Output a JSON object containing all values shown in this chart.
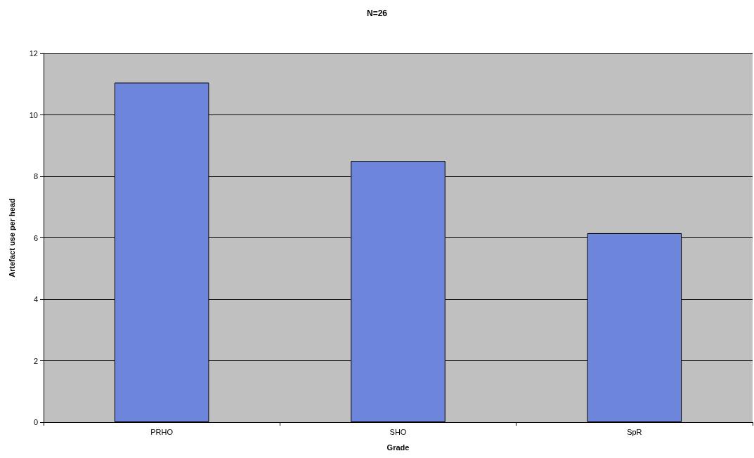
{
  "chart_data": {
    "type": "bar",
    "title": "N=26",
    "xlabel": "Grade",
    "ylabel": "Artefact use per head",
    "categories": [
      "PRHO",
      "SHO",
      "SpR"
    ],
    "values": [
      11.05,
      8.5,
      6.15
    ],
    "color": "#6d86dc",
    "ylim": [
      0,
      12
    ],
    "yticks": [
      0,
      2,
      4,
      6,
      8,
      10,
      12
    ],
    "grid": "y"
  }
}
